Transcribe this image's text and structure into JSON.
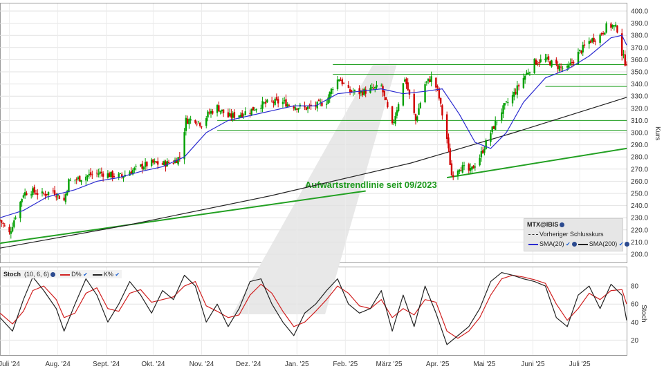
{
  "chart_data": [
    {
      "type": "candlestick",
      "ticker": "MTX@IBIS",
      "ylabel": "Kurs",
      "ylim": [
        200,
        400
      ],
      "yticks": [
        "200.0",
        "210.0",
        "220.0",
        "230.0",
        "240.0",
        "250.0",
        "260.0",
        "270.0",
        "280.0",
        "290.0",
        "300.0",
        "310.0",
        "320.0",
        "330.0",
        "340.0",
        "350.0",
        "360.0",
        "370.0",
        "380.0",
        "390.0",
        "400.0"
      ],
      "x_months": [
        "Juli '24",
        "Aug. '24",
        "Sept. '24",
        "Okt. '24",
        "Nov. '24",
        "Dez. '24",
        "Jan. '25",
        "Feb. '25",
        "März '25",
        "Apr. '25",
        "Mai '25",
        "Juni '25",
        "Juli '25"
      ],
      "close_path": [
        [
          "2024-06-25",
          228
        ],
        [
          "2024-07-01",
          217
        ],
        [
          "2024-07-05",
          232
        ],
        [
          "2024-07-10",
          250
        ],
        [
          "2024-07-15",
          252
        ],
        [
          "2024-07-22",
          249
        ],
        [
          "2024-07-29",
          252
        ],
        [
          "2024-08-05",
          244
        ],
        [
          "2024-08-08",
          260
        ],
        [
          "2024-08-14",
          262
        ],
        [
          "2024-08-21",
          265
        ],
        [
          "2024-08-28",
          267
        ],
        [
          "2024-09-04",
          265
        ],
        [
          "2024-09-11",
          264
        ],
        [
          "2024-09-16",
          268
        ],
        [
          "2024-09-23",
          272
        ],
        [
          "2024-09-30",
          275
        ],
        [
          "2024-10-07",
          274
        ],
        [
          "2024-10-14",
          276
        ],
        [
          "2024-10-18",
          280
        ],
        [
          "2024-10-22",
          310
        ],
        [
          "2024-10-28",
          311
        ],
        [
          "2024-11-01",
          307
        ],
        [
          "2024-11-05",
          315
        ],
        [
          "2024-11-11",
          321
        ],
        [
          "2024-11-18",
          313
        ],
        [
          "2024-11-25",
          315
        ],
        [
          "2024-12-02",
          318
        ],
        [
          "2024-12-09",
          323
        ],
        [
          "2024-12-16",
          325
        ],
        [
          "2024-12-23",
          325
        ],
        [
          "2024-12-30",
          322
        ],
        [
          "2025-01-06",
          320
        ],
        [
          "2025-01-13",
          322
        ],
        [
          "2025-01-20",
          326
        ],
        [
          "2025-01-24",
          338
        ],
        [
          "2025-01-28",
          345
        ],
        [
          "2025-02-03",
          334
        ],
        [
          "2025-02-10",
          333
        ],
        [
          "2025-02-17",
          335
        ],
        [
          "2025-02-24",
          338
        ],
        [
          "2025-03-03",
          305
        ],
        [
          "2025-03-07",
          325
        ],
        [
          "2025-03-11",
          345
        ],
        [
          "2025-03-14",
          330
        ],
        [
          "2025-03-18",
          310
        ],
        [
          "2025-03-24",
          340
        ],
        [
          "2025-03-28",
          345
        ],
        [
          "2025-04-01",
          335
        ],
        [
          "2025-04-07",
          295
        ],
        [
          "2025-04-10",
          265
        ],
        [
          "2025-04-15",
          272
        ],
        [
          "2025-04-22",
          268
        ],
        [
          "2025-04-28",
          280
        ],
        [
          "2025-05-05",
          300
        ],
        [
          "2025-05-12",
          318
        ],
        [
          "2025-05-19",
          330
        ],
        [
          "2025-05-26",
          345
        ],
        [
          "2025-06-02",
          358
        ],
        [
          "2025-06-09",
          360
        ],
        [
          "2025-06-16",
          355
        ],
        [
          "2025-06-23",
          352
        ],
        [
          "2025-06-30",
          365
        ],
        [
          "2025-07-07",
          375
        ],
        [
          "2025-07-14",
          380
        ],
        [
          "2025-07-18",
          387
        ],
        [
          "2025-07-22",
          388
        ],
        [
          "2025-07-25",
          385
        ],
        [
          "2025-07-28",
          365
        ],
        [
          "2025-07-30",
          358
        ]
      ],
      "horizontal_levels": [
        {
          "value": 356,
          "from": "2025-01-24"
        },
        {
          "value": 348,
          "from": "2025-01-24"
        },
        {
          "value": 338,
          "from": "2025-06-09"
        },
        {
          "value": 310,
          "from": "2024-11-11"
        },
        {
          "value": 302,
          "from": "2024-11-11"
        }
      ],
      "trendlines": [
        {
          "label": "Aufwärtstrendlinie seit 09/2023",
          "points": [
            [
              "2024-06-25",
              209
            ],
            [
              "2025-02-14",
              252
            ]
          ]
        },
        {
          "label": "",
          "points": [
            [
              "2025-04-07",
              263
            ],
            [
              "2025-07-31",
              287
            ]
          ]
        }
      ],
      "sma20": [
        [
          "2024-06-25",
          230
        ],
        [
          "2024-07-10",
          236
        ],
        [
          "2024-07-25",
          247
        ],
        [
          "2024-08-12",
          253
        ],
        [
          "2024-08-26",
          260
        ],
        [
          "2024-09-09",
          263
        ],
        [
          "2024-09-23",
          268
        ],
        [
          "2024-10-07",
          272
        ],
        [
          "2024-10-21",
          280
        ],
        [
          "2024-11-04",
          300
        ],
        [
          "2024-11-18",
          310
        ],
        [
          "2024-12-02",
          314
        ],
        [
          "2024-12-16",
          318
        ],
        [
          "2024-12-30",
          322
        ],
        [
          "2025-01-13",
          322
        ],
        [
          "2025-01-27",
          332
        ],
        [
          "2025-02-10",
          334
        ],
        [
          "2025-02-24",
          336
        ],
        [
          "2025-03-10",
          332
        ],
        [
          "2025-03-24",
          334
        ],
        [
          "2025-04-04",
          336
        ],
        [
          "2025-04-15",
          315
        ],
        [
          "2025-04-25",
          292
        ],
        [
          "2025-05-05",
          287
        ],
        [
          "2025-05-15",
          300
        ],
        [
          "2025-05-26",
          325
        ],
        [
          "2025-06-09",
          345
        ],
        [
          "2025-06-23",
          352
        ],
        [
          "2025-07-07",
          363
        ],
        [
          "2025-07-21",
          378
        ],
        [
          "2025-07-28",
          380
        ],
        [
          "2025-07-31",
          372
        ]
      ],
      "sma200": [
        [
          "2024-06-25",
          205
        ],
        [
          "2024-09-15",
          224
        ],
        [
          "2024-12-15",
          248
        ],
        [
          "2025-03-15",
          275
        ],
        [
          "2025-05-20",
          300
        ],
        [
          "2025-07-31",
          329
        ]
      ],
      "legend": {
        "ticker": "MTX@IBIS",
        "prev_close_label": "Vorheriger Schlusskurs",
        "sma20_label": "SMA(20)",
        "sma200_label": "SMA(200)"
      },
      "colors": {
        "up": "#00a000",
        "down": "#d00000",
        "sma20": "#2a2ad0",
        "sma200": "#222222",
        "levels": "#22a022",
        "trend": "#22a022"
      }
    },
    {
      "type": "line",
      "title": "Stoch",
      "params": "(10, 6, 6)",
      "ylim": [
        5,
        100
      ],
      "yticks": [
        20,
        40,
        60,
        80
      ],
      "series": [
        {
          "name": "K%",
          "color": "#222222",
          "values": [
            [
              "2024-06-25",
              45
            ],
            [
              "2024-07-03",
              30
            ],
            [
              "2024-07-10",
              65
            ],
            [
              "2024-07-16",
              90
            ],
            [
              "2024-07-23",
              75
            ],
            [
              "2024-07-31",
              55
            ],
            [
              "2024-08-05",
              30
            ],
            [
              "2024-08-12",
              60
            ],
            [
              "2024-08-19",
              88
            ],
            [
              "2024-08-26",
              70
            ],
            [
              "2024-09-02",
              40
            ],
            [
              "2024-09-09",
              60
            ],
            [
              "2024-09-16",
              85
            ],
            [
              "2024-09-23",
              70
            ],
            [
              "2024-09-30",
              50
            ],
            [
              "2024-10-07",
              75
            ],
            [
              "2024-10-14",
              65
            ],
            [
              "2024-10-21",
              92
            ],
            [
              "2024-10-28",
              80
            ],
            [
              "2024-11-04",
              40
            ],
            [
              "2024-11-11",
              60
            ],
            [
              "2024-11-18",
              35
            ],
            [
              "2024-11-25",
              55
            ],
            [
              "2024-12-02",
              85
            ],
            [
              "2024-12-09",
              88
            ],
            [
              "2024-12-16",
              60
            ],
            [
              "2024-12-23",
              40
            ],
            [
              "2024-12-30",
              25
            ],
            [
              "2025-01-06",
              50
            ],
            [
              "2025-01-13",
              60
            ],
            [
              "2025-01-20",
              75
            ],
            [
              "2025-01-27",
              88
            ],
            [
              "2025-02-03",
              60
            ],
            [
              "2025-02-10",
              50
            ],
            [
              "2025-02-17",
              55
            ],
            [
              "2025-02-24",
              75
            ],
            [
              "2025-03-03",
              30
            ],
            [
              "2025-03-10",
              70
            ],
            [
              "2025-03-17",
              35
            ],
            [
              "2025-03-24",
              80
            ],
            [
              "2025-03-31",
              50
            ],
            [
              "2025-04-07",
              15
            ],
            [
              "2025-04-14",
              25
            ],
            [
              "2025-04-21",
              35
            ],
            [
              "2025-04-28",
              55
            ],
            [
              "2025-05-05",
              85
            ],
            [
              "2025-05-12",
              95
            ],
            [
              "2025-05-19",
              92
            ],
            [
              "2025-05-26",
              88
            ],
            [
              "2025-06-02",
              85
            ],
            [
              "2025-06-09",
              80
            ],
            [
              "2025-06-16",
              45
            ],
            [
              "2025-06-23",
              35
            ],
            [
              "2025-06-30",
              70
            ],
            [
              "2025-07-07",
              80
            ],
            [
              "2025-07-14",
              55
            ],
            [
              "2025-07-21",
              82
            ],
            [
              "2025-07-28",
              70
            ],
            [
              "2025-07-31",
              42
            ]
          ]
        },
        {
          "name": "D%",
          "color": "#d02020",
          "values": [
            [
              "2024-06-25",
              50
            ],
            [
              "2024-07-03",
              38
            ],
            [
              "2024-07-10",
              52
            ],
            [
              "2024-07-16",
              75
            ],
            [
              "2024-07-23",
              80
            ],
            [
              "2024-07-31",
              65
            ],
            [
              "2024-08-05",
              45
            ],
            [
              "2024-08-12",
              50
            ],
            [
              "2024-08-19",
              72
            ],
            [
              "2024-08-26",
              78
            ],
            [
              "2024-09-02",
              55
            ],
            [
              "2024-09-09",
              52
            ],
            [
              "2024-09-16",
              72
            ],
            [
              "2024-09-23",
              76
            ],
            [
              "2024-09-30",
              62
            ],
            [
              "2024-10-07",
              65
            ],
            [
              "2024-10-14",
              68
            ],
            [
              "2024-10-21",
              80
            ],
            [
              "2024-10-28",
              85
            ],
            [
              "2024-11-04",
              58
            ],
            [
              "2024-11-11",
              52
            ],
            [
              "2024-11-18",
              45
            ],
            [
              "2024-11-25",
              48
            ],
            [
              "2024-12-02",
              70
            ],
            [
              "2024-12-09",
              82
            ],
            [
              "2024-12-16",
              72
            ],
            [
              "2024-12-23",
              52
            ],
            [
              "2024-12-30",
              35
            ],
            [
              "2025-01-06",
              40
            ],
            [
              "2025-01-13",
              52
            ],
            [
              "2025-01-20",
              65
            ],
            [
              "2025-01-27",
              80
            ],
            [
              "2025-02-03",
              72
            ],
            [
              "2025-02-10",
              58
            ],
            [
              "2025-02-17",
              55
            ],
            [
              "2025-02-24",
              65
            ],
            [
              "2025-03-03",
              45
            ],
            [
              "2025-03-10",
              55
            ],
            [
              "2025-03-17",
              48
            ],
            [
              "2025-03-24",
              65
            ],
            [
              "2025-03-31",
              62
            ],
            [
              "2025-04-07",
              30
            ],
            [
              "2025-04-14",
              22
            ],
            [
              "2025-04-21",
              30
            ],
            [
              "2025-04-28",
              45
            ],
            [
              "2025-05-05",
              70
            ],
            [
              "2025-05-12",
              88
            ],
            [
              "2025-05-19",
              92
            ],
            [
              "2025-05-26",
              90
            ],
            [
              "2025-06-02",
              87
            ],
            [
              "2025-06-09",
              83
            ],
            [
              "2025-06-16",
              60
            ],
            [
              "2025-06-23",
              42
            ],
            [
              "2025-06-30",
              55
            ],
            [
              "2025-07-07",
              72
            ],
            [
              "2025-07-14",
              65
            ],
            [
              "2025-07-21",
              75
            ],
            [
              "2025-07-28",
              76
            ],
            [
              "2025-07-31",
              60
            ]
          ]
        }
      ],
      "legend": {
        "title": "Stoch",
        "params": "(10, 6, 6)",
        "d_label": "D%",
        "k_label": "K%"
      }
    }
  ],
  "annotation_text": "Aufwärtstrendlinie seit 09/2023"
}
